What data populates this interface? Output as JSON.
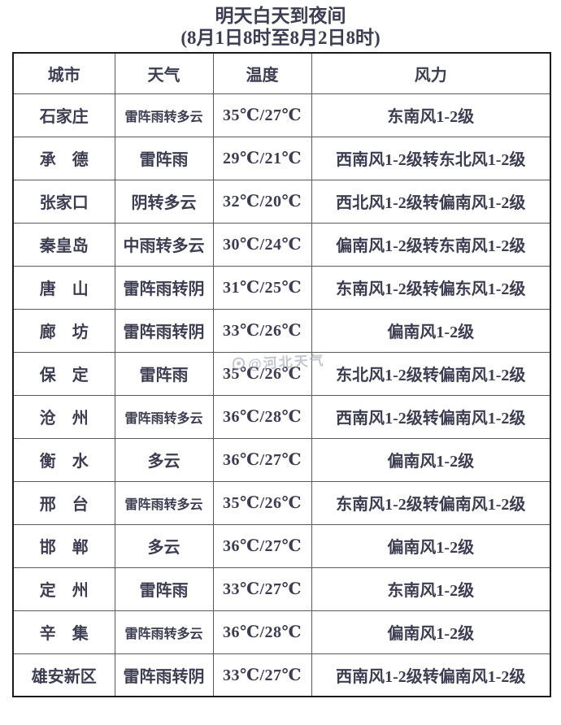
{
  "title": {
    "line1": "明天白天到夜间",
    "line2": "(8月1日8时至8月2日8时)"
  },
  "watermark": "@河北天气",
  "colors": {
    "text": "#3d3d52",
    "temp": "#c32222",
    "border_outer": "#1b1b1b",
    "border_inner": "#5a5a5a"
  },
  "table": {
    "headers": [
      "城市",
      "天气",
      "温度",
      "风力"
    ],
    "rows": [
      {
        "city": "石家庄",
        "weather": "雷阵雨转多云",
        "temp": "35℃/27℃",
        "wind": "东南风1-2级"
      },
      {
        "city": "承　德",
        "weather": "雷阵雨",
        "temp": "29℃/21℃",
        "wind": "西南风1-2级转东北风1-2级"
      },
      {
        "city": "张家口",
        "weather": "阴转多云",
        "temp": "32℃/20℃",
        "wind": "西北风1-2级转偏南风1-2级"
      },
      {
        "city": "秦皇岛",
        "weather": "中雨转多云",
        "temp": "30℃/24℃",
        "wind": "偏南风1-2级转东南风1-2级"
      },
      {
        "city": "唐　山",
        "weather": "雷阵雨转阴",
        "temp": "31℃/25℃",
        "wind": "东南风1-2级转偏东风1-2级"
      },
      {
        "city": "廊　坊",
        "weather": "雷阵雨转阴",
        "temp": "33℃/26℃",
        "wind": "偏南风1-2级"
      },
      {
        "city": "保　定",
        "weather": "雷阵雨",
        "temp": "35℃/26℃",
        "wind": "东北风1-2级转偏南风1-2级"
      },
      {
        "city": "沧　州",
        "weather": "雷阵雨转多云",
        "temp": "36℃/28℃",
        "wind": "西南风1-2级转偏南风1-2级"
      },
      {
        "city": "衡　水",
        "weather": "多云",
        "temp": "36℃/27℃",
        "wind": "偏南风1-2级"
      },
      {
        "city": "邢　台",
        "weather": "雷阵雨转多云",
        "temp": "35℃/26℃",
        "wind": "东南风1-2级转偏南风1-2级"
      },
      {
        "city": "邯　郸",
        "weather": "多云",
        "temp": "36℃/27℃",
        "wind": "偏南风1-2级"
      },
      {
        "city": "定　州",
        "weather": "雷阵雨",
        "temp": "33℃/27℃",
        "wind": "东南风1-2级"
      },
      {
        "city": "辛　集",
        "weather": "雷阵雨转多云",
        "temp": "36℃/28℃",
        "wind": "偏南风1-2级"
      },
      {
        "city": "雄安新区",
        "weather": "雷阵雨转阴",
        "temp": "33℃/27℃",
        "wind": "西南风1-2级转偏南风1-2级"
      }
    ]
  }
}
